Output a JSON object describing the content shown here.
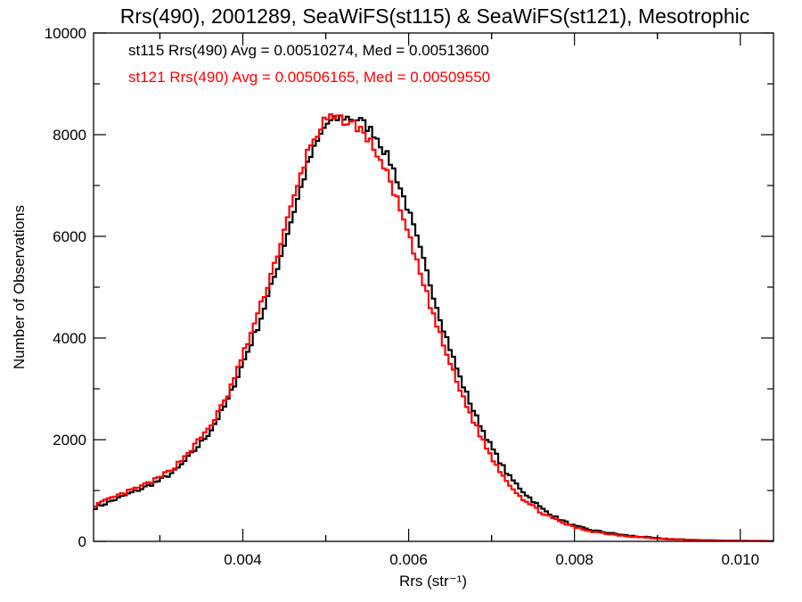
{
  "chart_data": {
    "type": "line",
    "title": "Rrs(490), 2001289, SeaWiFS(st115) & SeaWiFS(st121), Mesotrophic",
    "xlabel": "Rrs (str⁻¹)",
    "ylabel": "Number of Observations",
    "xlim": [
      0.0022,
      0.0104
    ],
    "ylim": [
      0,
      10000
    ],
    "x_ticks": [
      0.004,
      0.006,
      0.008,
      0.01
    ],
    "x_tick_labels": [
      "0.004",
      "0.006",
      "0.008",
      "0.010"
    ],
    "y_ticks": [
      0,
      2000,
      4000,
      6000,
      8000,
      10000
    ],
    "y_tick_labels": [
      "0",
      "2000",
      "4000",
      "6000",
      "8000",
      "10000"
    ],
    "grid": false,
    "annotations": [
      {
        "text": "st115 Rrs(490) Avg = 0.00510274, Med = 0.00513600",
        "color": "#000000"
      },
      {
        "text": "st121 Rrs(490) Avg = 0.00506165, Med = 0.00509550",
        "color": "#ff0000"
      }
    ],
    "series": [
      {
        "color": "#000000",
        "x": [
          0.0022,
          0.0025,
          0.0028,
          0.003,
          0.0032,
          0.0034,
          0.0036,
          0.0038,
          0.004,
          0.0042,
          0.0044,
          0.0046,
          0.0048,
          0.005,
          0.0052,
          0.0054,
          0.0056,
          0.0058,
          0.006,
          0.0062,
          0.0064,
          0.0066,
          0.0068,
          0.007,
          0.0072,
          0.0074,
          0.0076,
          0.0078,
          0.008,
          0.0082,
          0.0084,
          0.0086,
          0.0088,
          0.009,
          0.0092,
          0.0094,
          0.0096,
          0.0098,
          0.01,
          0.0102,
          0.0104
        ],
        "values": [
          650,
          850,
          1050,
          1200,
          1400,
          1750,
          2150,
          2700,
          3500,
          4300,
          5300,
          6400,
          7500,
          8200,
          8350,
          8300,
          8000,
          7400,
          6500,
          5400,
          4300,
          3300,
          2500,
          1850,
          1300,
          950,
          650,
          450,
          300,
          220,
          170,
          120,
          90,
          60,
          40,
          30,
          20,
          15,
          10,
          8,
          5
        ]
      },
      {
        "color": "#ff0000",
        "x": [
          0.0022,
          0.0025,
          0.0028,
          0.003,
          0.0032,
          0.0034,
          0.0036,
          0.0038,
          0.004,
          0.0042,
          0.0044,
          0.0046,
          0.0048,
          0.005,
          0.0052,
          0.0054,
          0.0056,
          0.0058,
          0.006,
          0.0062,
          0.0064,
          0.0066,
          0.0068,
          0.007,
          0.0072,
          0.0074,
          0.0076,
          0.0078,
          0.008,
          0.0082,
          0.0084,
          0.0086,
          0.0088,
          0.009,
          0.0092,
          0.0094,
          0.0096,
          0.0098,
          0.01,
          0.0102,
          0.0104
        ],
        "values": [
          700,
          900,
          1100,
          1250,
          1500,
          1850,
          2250,
          2800,
          3650,
          4550,
          5550,
          6650,
          7750,
          8300,
          8300,
          8150,
          7700,
          7000,
          6000,
          4950,
          3950,
          3050,
          2300,
          1650,
          1150,
          800,
          570,
          400,
          280,
          200,
          150,
          110,
          80,
          55,
          40,
          28,
          20,
          14,
          10,
          7,
          5
        ]
      }
    ]
  }
}
